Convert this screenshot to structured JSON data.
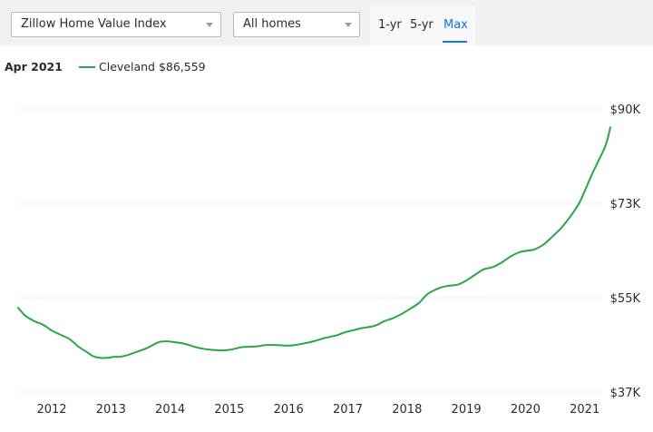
{
  "toolbar": {
    "index_dropdown": "Zillow Home Value Index",
    "homes_dropdown": "All homes",
    "ranges": [
      "1-yr",
      "5-yr",
      "Max"
    ],
    "active_range": "Max"
  },
  "legend": {
    "date": "Apr 2021",
    "series_label": "Cleveland $86,559",
    "color": "#28a745"
  },
  "chart_data": {
    "type": "line",
    "x_tick_labels": [
      "2012",
      "2013",
      "2014",
      "2015",
      "2016",
      "2017",
      "2018",
      "2019",
      "2020",
      "2021"
    ],
    "y_tick_labels": [
      "$90K",
      "$73K",
      "$55K",
      "$37K"
    ],
    "ylim": [
      37000,
      90000
    ],
    "grid": true,
    "series": [
      {
        "color": "#28a745",
        "points": [
          [
            2011.33,
            52800
          ],
          [
            2011.45,
            51300
          ],
          [
            2011.6,
            50300
          ],
          [
            2011.75,
            49600
          ],
          [
            2011.9,
            48500
          ],
          [
            2012.05,
            47700
          ],
          [
            2012.2,
            46900
          ],
          [
            2012.35,
            45500
          ],
          [
            2012.5,
            44400
          ],
          [
            2012.6,
            43700
          ],
          [
            2012.7,
            43400
          ],
          [
            2012.85,
            43400
          ],
          [
            2012.95,
            43600
          ],
          [
            2013.05,
            43600
          ],
          [
            2013.2,
            44000
          ],
          [
            2013.35,
            44600
          ],
          [
            2013.5,
            45200
          ],
          [
            2013.62,
            45900
          ],
          [
            2013.72,
            46400
          ],
          [
            2013.85,
            46500
          ],
          [
            2014.0,
            46300
          ],
          [
            2014.15,
            46000
          ],
          [
            2014.3,
            45500
          ],
          [
            2014.45,
            45100
          ],
          [
            2014.6,
            44900
          ],
          [
            2014.8,
            44800
          ],
          [
            2014.95,
            45000
          ],
          [
            2015.1,
            45400
          ],
          [
            2015.25,
            45500
          ],
          [
            2015.4,
            45600
          ],
          [
            2015.5,
            45800
          ],
          [
            2015.7,
            45800
          ],
          [
            2015.85,
            45700
          ],
          [
            2016.0,
            45800
          ],
          [
            2016.2,
            46200
          ],
          [
            2016.35,
            46600
          ],
          [
            2016.5,
            47100
          ],
          [
            2016.7,
            47600
          ],
          [
            2016.85,
            48200
          ],
          [
            2017.0,
            48600
          ],
          [
            2017.15,
            49000
          ],
          [
            2017.35,
            49400
          ],
          [
            2017.5,
            50200
          ],
          [
            2017.65,
            50800
          ],
          [
            2017.8,
            51600
          ],
          [
            2017.95,
            52600
          ],
          [
            2018.1,
            53700
          ],
          [
            2018.25,
            55400
          ],
          [
            2018.45,
            56500
          ],
          [
            2018.6,
            56900
          ],
          [
            2018.75,
            57100
          ],
          [
            2018.9,
            57900
          ],
          [
            2019.05,
            59000
          ],
          [
            2019.2,
            60000
          ],
          [
            2019.35,
            60400
          ],
          [
            2019.5,
            61300
          ],
          [
            2019.65,
            62400
          ],
          [
            2019.8,
            63200
          ],
          [
            2019.95,
            63500
          ],
          [
            2020.05,
            63700
          ],
          [
            2020.2,
            64600
          ],
          [
            2020.35,
            66100
          ],
          [
            2020.5,
            67700
          ],
          [
            2020.65,
            69800
          ],
          [
            2020.8,
            72300
          ],
          [
            2020.9,
            74700
          ],
          [
            2021.0,
            77300
          ],
          [
            2021.12,
            80100
          ],
          [
            2021.25,
            83200
          ],
          [
            2021.33,
            86559
          ]
        ]
      }
    ]
  }
}
